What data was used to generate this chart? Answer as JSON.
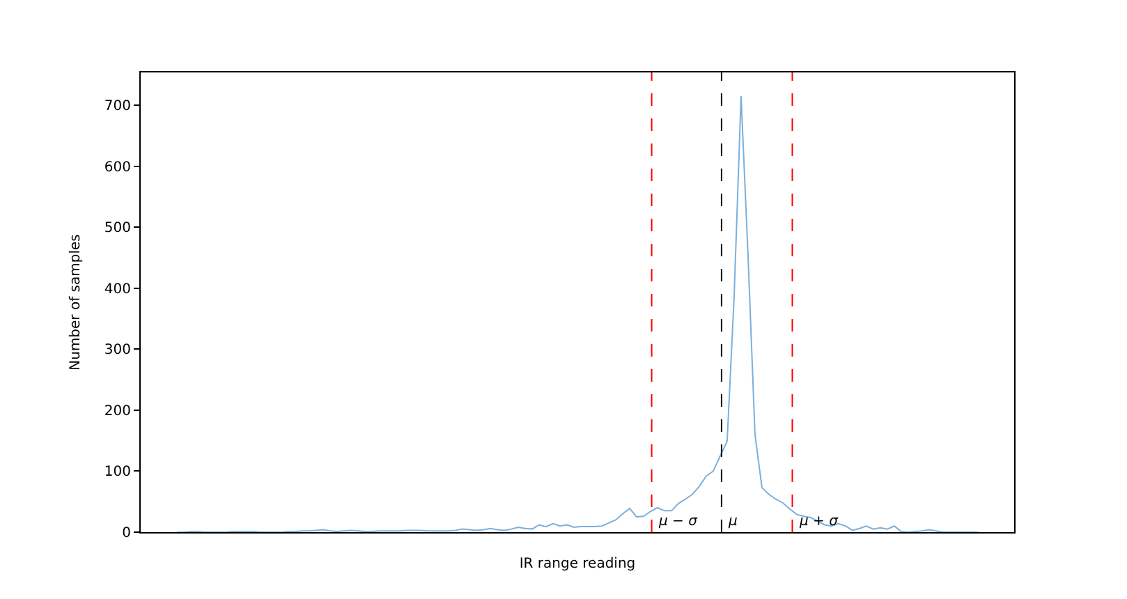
{
  "chart_data": {
    "type": "line",
    "xlabel": "IR range reading",
    "ylabel": "Number of samples",
    "categories": [
      null,
      null,
      null,
      null,
      null,
      null,
      null,
      null,
      null,
      null,
      null,
      null,
      null,
      null,
      null,
      null,
      null,
      null,
      null,
      null,
      null,
      null,
      null,
      null,
      null,
      null,
      null,
      null,
      null,
      null,
      null,
      null,
      null,
      null,
      null,
      null,
      null,
      null,
      null,
      null,
      null,
      null,
      null,
      null,
      null,
      null,
      null,
      null,
      null,
      null,
      null,
      null,
      null,
      null,
      null,
      null,
      null,
      null,
      null,
      null,
      null,
      null,
      null,
      null,
      null,
      null,
      null,
      null,
      null,
      null,
      null,
      null,
      null,
      null,
      null,
      null,
      null,
      null,
      null,
      null,
      null,
      null,
      null,
      null,
      null,
      null,
      null,
      null,
      null,
      null,
      null,
      null,
      null,
      null,
      null,
      null,
      null,
      null,
      null,
      null,
      null,
      null,
      null,
      null,
      null,
      null,
      null,
      null,
      null,
      null,
      null,
      null,
      null,
      null,
      null,
      null
    ],
    "ylim": [
      0,
      754
    ],
    "yticks": [
      0,
      100,
      200,
      300,
      400,
      500,
      600,
      700
    ],
    "tick_labels": "y",
    "marker": "none",
    "line_style": "solid",
    "series": [
      {
        "color": "#7ab0dc",
        "values": [
          0,
          0,
          1,
          1,
          0,
          0,
          0,
          0,
          1,
          1,
          1,
          1,
          0,
          0,
          0,
          0,
          1,
          1,
          2,
          2,
          3,
          4,
          2,
          1,
          2,
          3,
          2,
          1,
          1,
          2,
          2,
          2,
          2,
          3,
          3,
          3,
          2,
          2,
          2,
          2,
          3,
          5,
          4,
          3,
          4,
          6,
          4,
          3,
          5,
          8,
          6,
          5,
          12,
          9,
          14,
          10,
          12,
          8,
          9,
          9,
          9,
          10,
          15,
          20,
          30,
          39,
          25,
          26,
          34,
          40,
          35,
          35,
          47,
          54,
          62,
          75,
          92,
          100,
          125,
          149,
          385,
          715,
          454,
          160,
          73,
          62,
          54,
          48,
          38,
          29,
          26,
          24,
          18,
          12,
          10,
          14,
          10,
          3,
          6,
          10,
          5,
          7,
          5,
          10,
          1,
          0,
          1,
          2,
          4,
          2,
          0,
          0,
          0,
          0,
          0,
          0
        ]
      }
    ],
    "annotations": [
      "μ − σ",
      "μ",
      "μ + σ"
    ]
  }
}
